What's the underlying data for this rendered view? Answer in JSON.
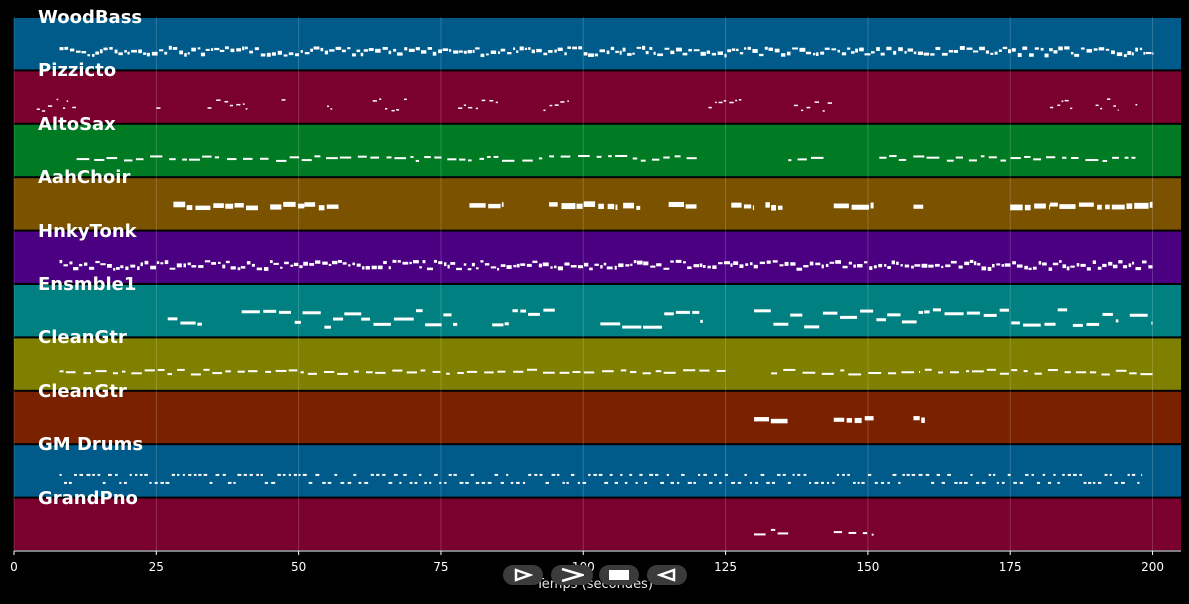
{
  "x_axis": {
    "title": "Temps (secondes)",
    "range": [
      0,
      205
    ],
    "ticks": [
      {
        "value": 0,
        "label": "0"
      },
      {
        "value": 25,
        "label": "25"
      },
      {
        "value": 50,
        "label": "50"
      },
      {
        "value": 75,
        "label": "75"
      },
      {
        "value": 100,
        "label": "100"
      },
      {
        "value": 125,
        "label": "125"
      },
      {
        "value": 150,
        "label": "150"
      },
      {
        "value": 175,
        "label": "175"
      },
      {
        "value": 200,
        "label": "200"
      }
    ],
    "grid": true
  },
  "tracks": [
    {
      "name": "WoodBass",
      "color": "#005b8a",
      "segments": [
        [
          8,
          200
        ]
      ],
      "style": "dense-line"
    },
    {
      "name": "Pizzicto",
      "color": "#7a002e",
      "segments": [
        [
          4,
          11
        ],
        [
          25,
          26
        ],
        [
          34,
          41
        ],
        [
          47,
          48
        ],
        [
          55,
          56
        ],
        [
          63,
          69
        ],
        [
          78,
          85
        ],
        [
          93,
          98
        ],
        [
          122,
          128
        ],
        [
          137,
          144
        ],
        [
          182,
          186
        ],
        [
          190,
          194
        ],
        [
          197,
          198
        ]
      ],
      "style": "sparse-short"
    },
    {
      "name": "AltoSax",
      "color": "#007a23",
      "segments": [
        [
          11,
          120
        ],
        [
          136,
          143
        ],
        [
          152,
          197
        ]
      ],
      "style": "dashed"
    },
    {
      "name": "AahChoir",
      "color": "#7a5200",
      "segments": [
        [
          28,
          43
        ],
        [
          45,
          51
        ],
        [
          51,
          57
        ],
        [
          80,
          86
        ],
        [
          94,
          106
        ],
        [
          107,
          110
        ],
        [
          115,
          120
        ],
        [
          126,
          130
        ],
        [
          132,
          135
        ],
        [
          144,
          151
        ],
        [
          158,
          160
        ],
        [
          175,
          182
        ],
        [
          182,
          200
        ]
      ],
      "style": "blocks"
    },
    {
      "name": "HnkyTonk",
      "color": "#4a0080",
      "segments": [
        [
          8,
          200
        ]
      ],
      "style": "dense-line"
    },
    {
      "name": "Ensmble1",
      "color": "#008080",
      "segments": [
        [
          27,
          33
        ],
        [
          40,
          61
        ],
        [
          61,
          78
        ],
        [
          84,
          95
        ],
        [
          103,
          121
        ],
        [
          130,
          185
        ],
        [
          186,
          194
        ],
        [
          196,
          200
        ]
      ],
      "style": "melody"
    },
    {
      "name": "CleanGtr",
      "color": "#7f7f00",
      "segments": [
        [
          8,
          125
        ],
        [
          133,
          159
        ],
        [
          160,
          200
        ]
      ],
      "style": "dashed"
    },
    {
      "name": "CleanGtr",
      "color": "#7a2200",
      "segments": [
        [
          130,
          136
        ],
        [
          144,
          151
        ],
        [
          158,
          160
        ]
      ],
      "style": "blocks"
    },
    {
      "name": "GM Drums",
      "color": "#005b8a",
      "segments": [
        [
          8,
          198
        ]
      ],
      "style": "drums"
    },
    {
      "name": "GrandPno",
      "color": "#7a002e",
      "segments": [
        [
          130,
          136
        ],
        [
          144,
          151
        ]
      ],
      "style": "dashed"
    }
  ],
  "controls": [
    {
      "name": "play-outline-icon-button",
      "icon": "play-outline-icon"
    },
    {
      "name": "forward-icon-button",
      "icon": "chevron-right-icon"
    },
    {
      "name": "stop-icon-button",
      "icon": "stop-icon"
    },
    {
      "name": "rewind-icon-button",
      "icon": "play-left-outline-icon"
    }
  ]
}
